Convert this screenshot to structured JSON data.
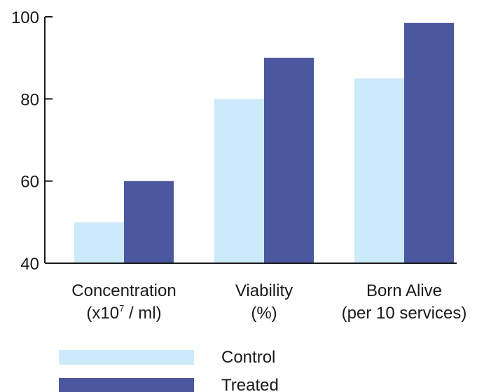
{
  "chart_data": {
    "type": "bar",
    "categories": [
      {
        "line1": "Concentration",
        "line2_pre": "(x10",
        "line2_sup": "7",
        "line2_post": " / ml)"
      },
      {
        "line1": "Viability",
        "line2_pre": "(%)",
        "line2_sup": "",
        "line2_post": ""
      },
      {
        "line1": "Born Alive",
        "line2_pre": "(per 10 services)",
        "line2_sup": "",
        "line2_post": ""
      }
    ],
    "series": [
      {
        "name": "Control",
        "color": "#cdeafb",
        "values": [
          50,
          80,
          85
        ]
      },
      {
        "name": "Treated",
        "color": "#4b589f",
        "values": [
          60,
          90,
          98.5
        ]
      }
    ],
    "ylim": [
      40,
      100
    ],
    "yticks": [
      40,
      60,
      80,
      100
    ],
    "grid": false,
    "legend_position": "bottom-left"
  }
}
